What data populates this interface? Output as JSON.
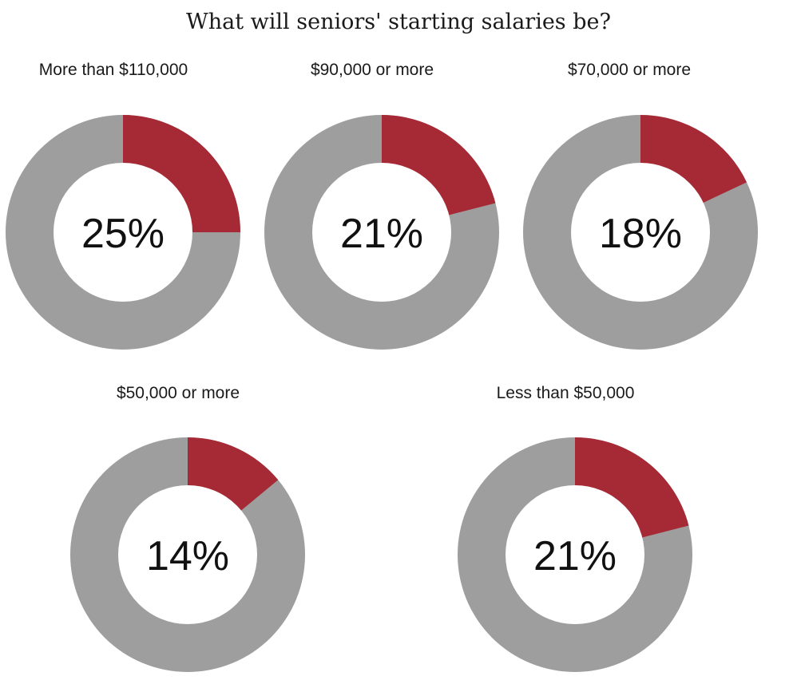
{
  "title": "What will seniors' starting salaries be?",
  "colors": {
    "highlight": "#a62a35",
    "remainder": "#9e9e9e",
    "center": "#ffffff"
  },
  "chart_data": {
    "type": "pie",
    "title": "What will seniors' starting salaries be?",
    "charts": [
      {
        "label": "More than $110,000",
        "value": 25,
        "display": "25%"
      },
      {
        "label": "$90,000 or more",
        "value": 21,
        "display": "21%"
      },
      {
        "label": "$70,000 or more",
        "value": 18,
        "display": "18%"
      },
      {
        "label": "$50,000 or more",
        "value": 14,
        "display": "14%"
      },
      {
        "label": "Less than $50,000",
        "value": 21,
        "display": "21%"
      }
    ]
  }
}
